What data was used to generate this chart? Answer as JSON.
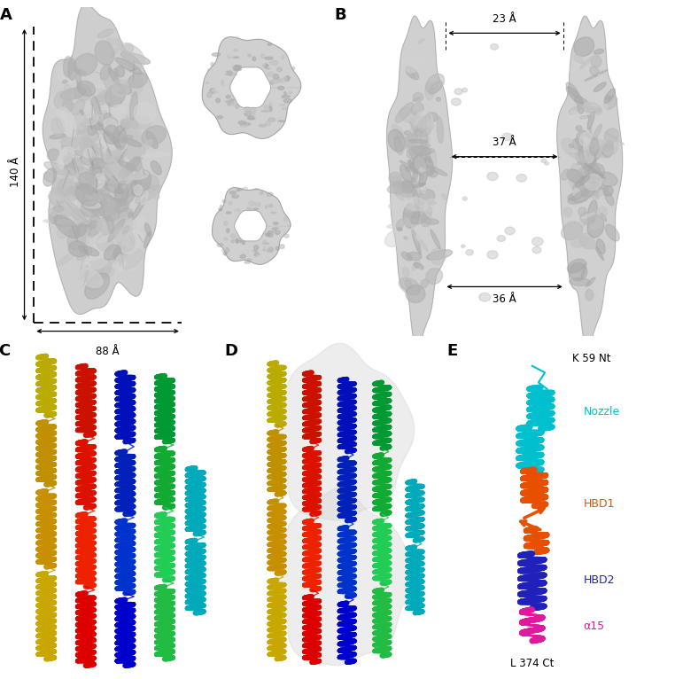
{
  "figure_width": 7.62,
  "figure_height": 7.66,
  "bg_color": "#ffffff",
  "panel_A": {
    "label": "A",
    "annotation_140A": "140 Å",
    "annotation_88A": "88 Å"
  },
  "panel_B": {
    "label": "B",
    "annotation_23A": "23 Å",
    "annotation_37A": "37 Å",
    "annotation_36A": "36 Å"
  },
  "panel_C": {
    "label": "C"
  },
  "panel_D": {
    "label": "D"
  },
  "panel_E": {
    "label": "E",
    "k59_label": "K 59 Nt",
    "nozzle_label": "Nozzle",
    "nozzle_color": "#00c0d0",
    "hbd1_label": "HBD1",
    "hbd1_color": "#e85000",
    "hbd2_label": "HBD2",
    "hbd2_color": "#2020bb",
    "alpha15_label": "α15",
    "alpha15_color": "#e0189e",
    "l374_label": "L 374 Ct"
  },
  "helix_colors_c": [
    "#c8a800",
    "#dd0000",
    "#0000cc",
    "#22bb44",
    "#c89000",
    "#ee2200",
    "#0033cc",
    "#22cc55",
    "#00aabb",
    "#c09000",
    "#dd1100",
    "#0022bb",
    "#11aa33",
    "#00aabb",
    "#bbaa00",
    "#cc1100",
    "#0011bb",
    "#009933"
  ],
  "helix_colors_d": [
    "#c8a800",
    "#dd0000",
    "#0000cc",
    "#22bb44",
    "#c89000",
    "#ee2200",
    "#0033cc",
    "#22cc55",
    "#00aabb",
    "#c09000",
    "#dd1100",
    "#0022bb",
    "#11aa33",
    "#00aabb",
    "#bbaa00",
    "#cc1100",
    "#0011bb",
    "#009933"
  ]
}
